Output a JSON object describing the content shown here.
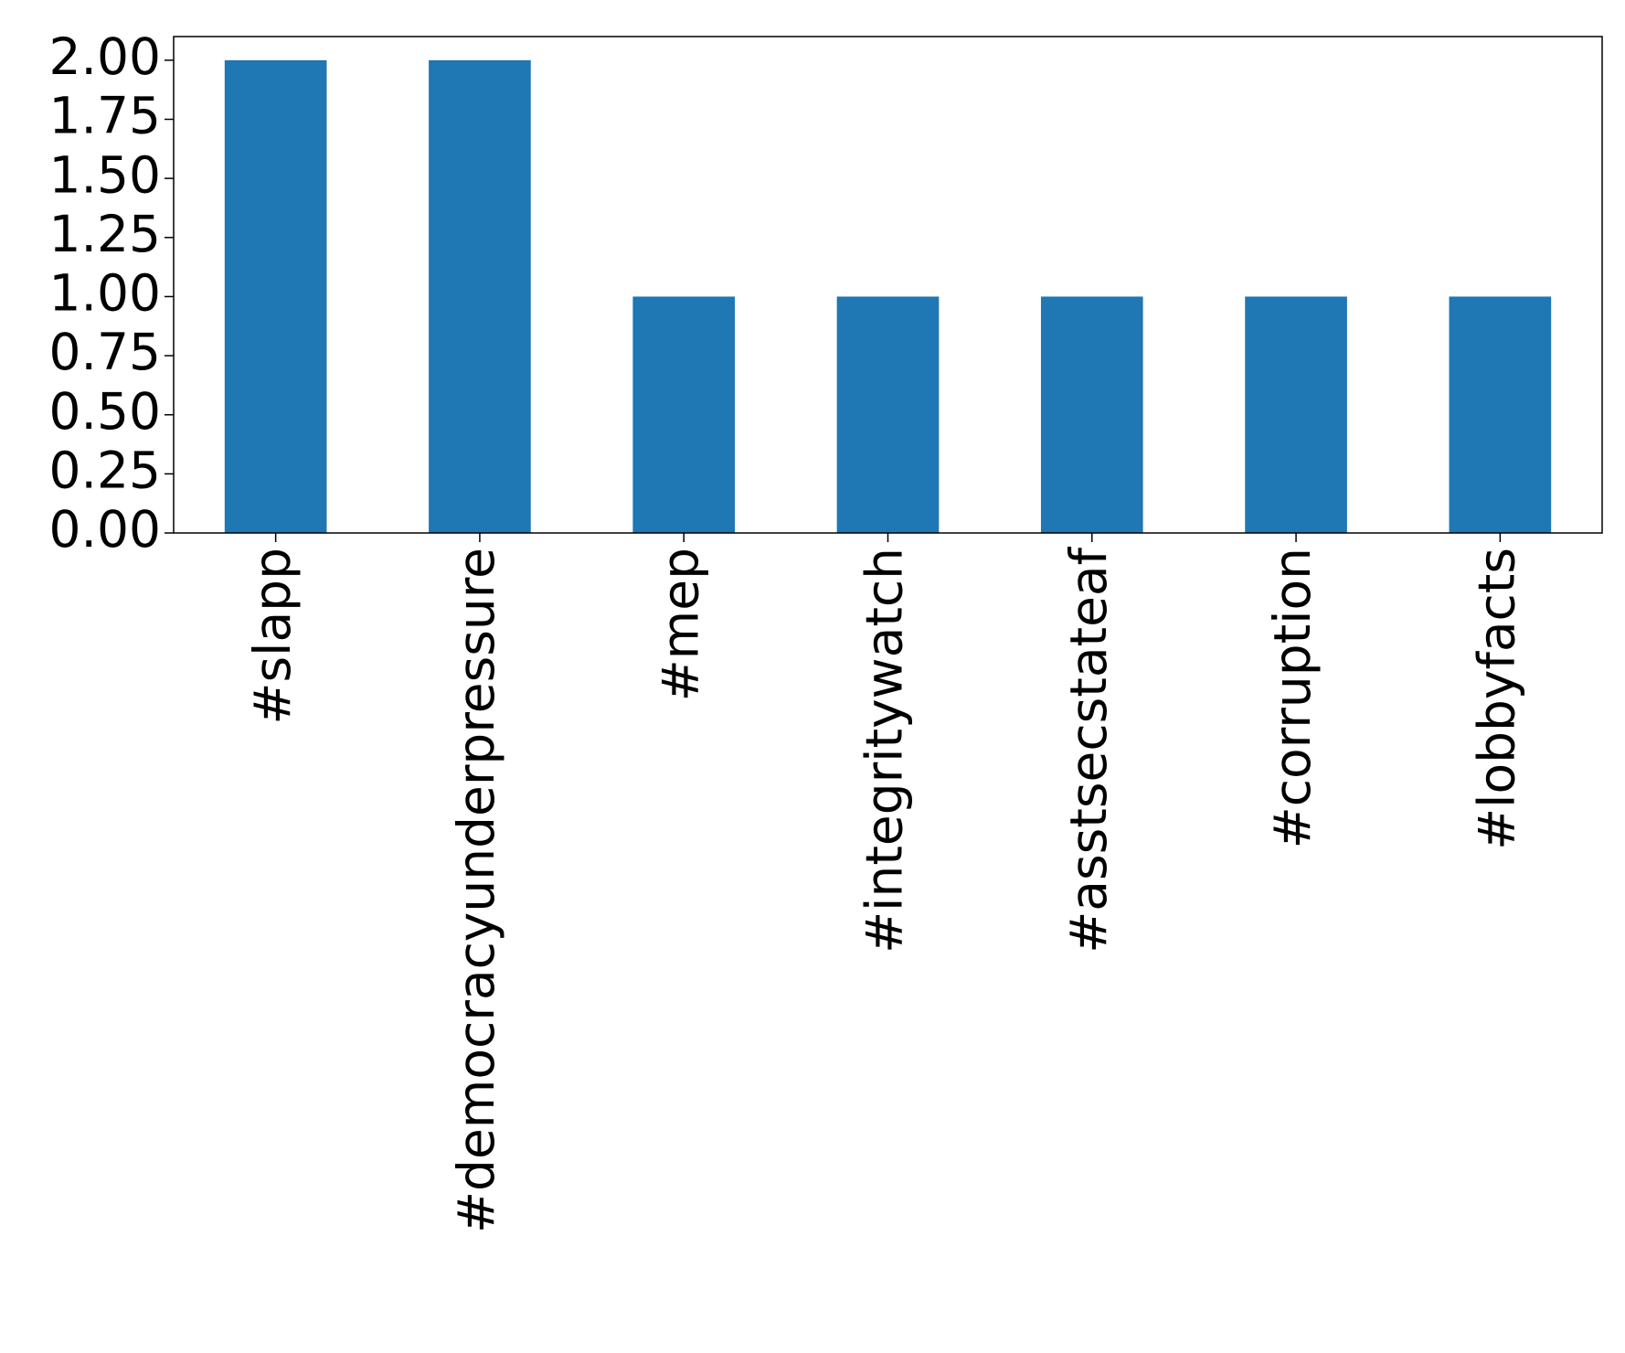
{
  "chart_data": {
    "type": "bar",
    "categories": [
      "#slapp",
      "#democracyunderpressure",
      "#mep",
      "#integritywatch",
      "#asstsecstateaf",
      "#corruption",
      "#lobbyfacts"
    ],
    "values": [
      2,
      2,
      1,
      1,
      1,
      1,
      1
    ],
    "color": "#1f77b4",
    "ylim": [
      0,
      2.1
    ],
    "yticks": [
      {
        "value": 0,
        "label": "0.00"
      },
      {
        "value": 0.25,
        "label": "0.25"
      },
      {
        "value": 0.5,
        "label": "0.50"
      },
      {
        "value": 0.75,
        "label": "0.75"
      },
      {
        "value": 1,
        "label": "1.00"
      },
      {
        "value": 1.25,
        "label": "1.25"
      },
      {
        "value": 1.5,
        "label": "1.50"
      },
      {
        "value": 1.75,
        "label": "1.75"
      },
      {
        "value": 2,
        "label": "2.00"
      }
    ],
    "grid": false
  }
}
